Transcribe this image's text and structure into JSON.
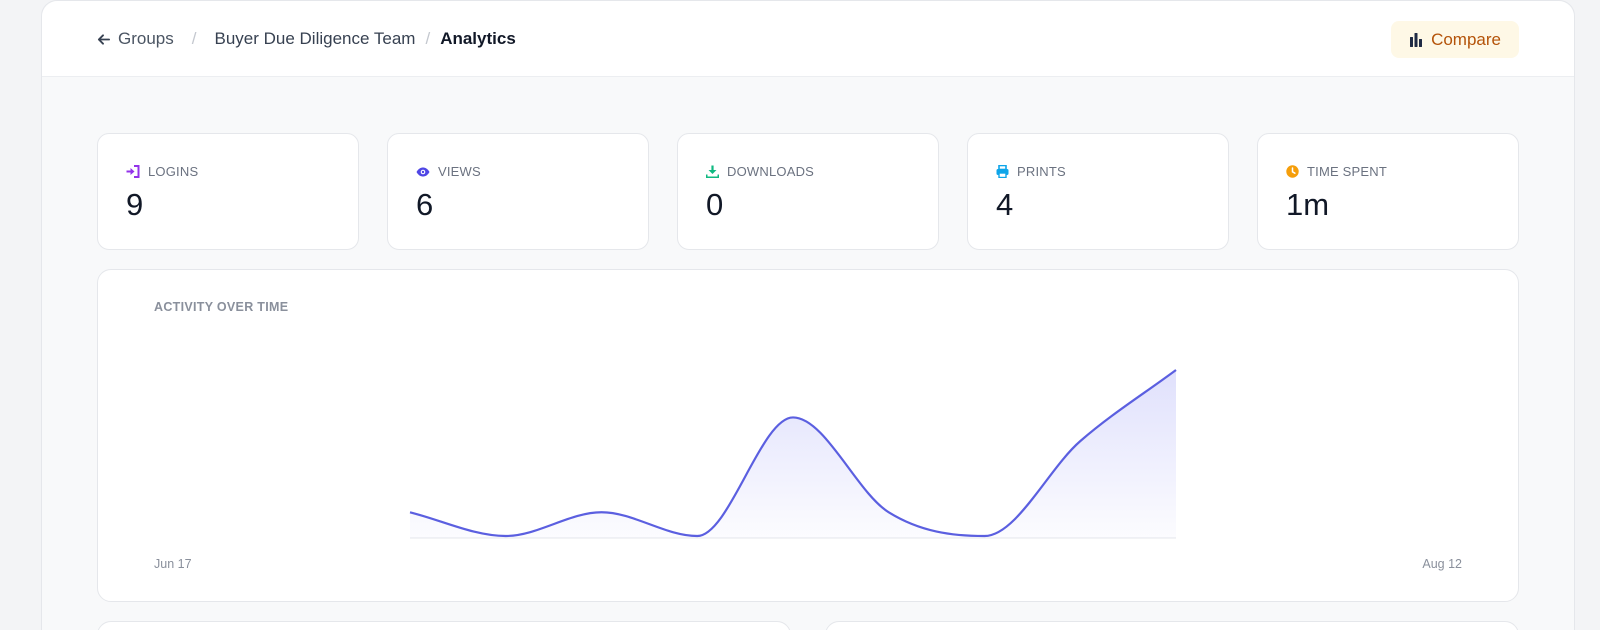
{
  "breadcrumb": {
    "back_label": "Groups",
    "group_name": "Buyer Due Diligence Team",
    "current": "Analytics",
    "separator": "/"
  },
  "toolbar": {
    "compare_label": "Compare",
    "compare_color": "#b45309"
  },
  "stats": [
    {
      "label": "LOGINS",
      "value": "9",
      "icon": "login-icon",
      "color": "#9333ea"
    },
    {
      "label": "VIEWS",
      "value": "6",
      "icon": "eye-icon",
      "color": "#4f46e5"
    },
    {
      "label": "DOWNLOADS",
      "value": "0",
      "icon": "download-icon",
      "color": "#10b981"
    },
    {
      "label": "PRINTS",
      "value": "4",
      "icon": "printer-icon",
      "color": "#0ea5e9"
    },
    {
      "label": "TIME SPENT",
      "value": "1m",
      "icon": "clock-icon",
      "color": "#f59e0b"
    }
  ],
  "chart": {
    "title": "ACTIVITY OVER TIME",
    "x_start_label": "Jun 17",
    "x_end_label": "Aug 12",
    "line_color": "#5b5fe0"
  },
  "chart_data": {
    "type": "area",
    "title": "ACTIVITY OVER TIME",
    "x_range": [
      "Jun 17",
      "Aug 12"
    ],
    "values": [
      1,
      0,
      1,
      0,
      5,
      1,
      0,
      4,
      7
    ],
    "grid": false,
    "legend": "none"
  }
}
